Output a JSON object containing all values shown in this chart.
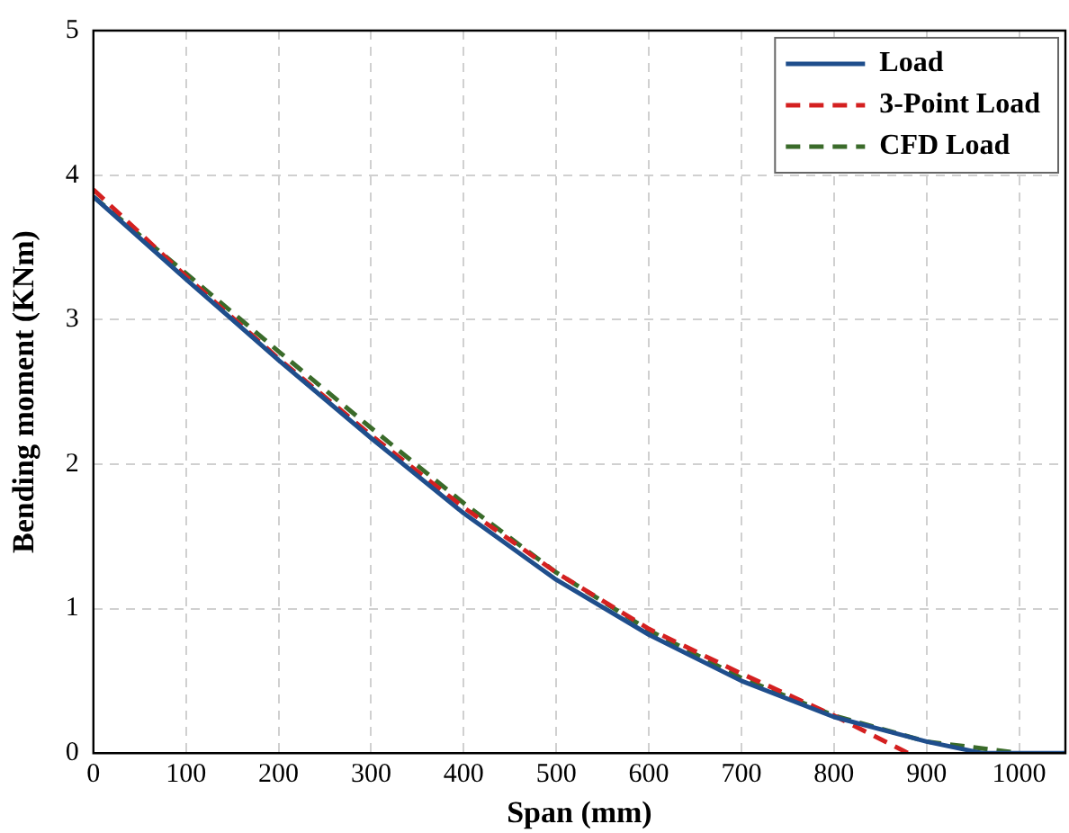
{
  "chart_data": {
    "type": "line",
    "xlabel": "Span (mm)",
    "ylabel": "Bending moment (KNm)",
    "xlim": [
      0,
      1050
    ],
    "xticks": [
      0,
      100,
      200,
      300,
      400,
      500,
      600,
      700,
      800,
      900,
      1000
    ],
    "ylim": [
      0,
      5
    ],
    "yticks": [
      0,
      1,
      2,
      3,
      4,
      5
    ],
    "grid": true,
    "legend": "top right",
    "marker": "none",
    "series": [
      {
        "name": "Load",
        "color": "#1f4e8c",
        "line_style": "solid",
        "x": [
          0,
          100,
          200,
          300,
          400,
          500,
          600,
          700,
          800,
          900,
          960,
          1050
        ],
        "values": [
          3.85,
          3.28,
          2.72,
          2.18,
          1.66,
          1.2,
          0.82,
          0.5,
          0.25,
          0.08,
          0,
          0
        ]
      },
      {
        "name": "3-Point Load",
        "color": "#d42020",
        "line_style": "dashed",
        "x": [
          0,
          100,
          200,
          300,
          400,
          500,
          600,
          700,
          800,
          880
        ],
        "values": [
          3.9,
          3.3,
          2.73,
          2.2,
          1.7,
          1.25,
          0.86,
          0.55,
          0.26,
          0
        ]
      },
      {
        "name": "CFD Load",
        "color": "#3a6b2a",
        "line_style": "dashed",
        "x": [
          0,
          100,
          200,
          300,
          400,
          500,
          600,
          700,
          800,
          900,
          1000
        ],
        "values": [
          3.85,
          3.32,
          2.78,
          2.25,
          1.73,
          1.25,
          0.85,
          0.52,
          0.26,
          0.08,
          0
        ]
      }
    ]
  }
}
